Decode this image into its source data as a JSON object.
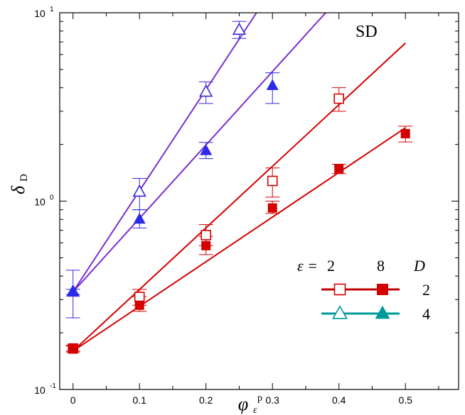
{
  "chart_data": {
    "type": "scatter",
    "title": "",
    "annotation": "SD",
    "xlabel": {
      "symbol": "φ",
      "subscript": "ε",
      "superscript": "p"
    },
    "ylabel": {
      "symbol": "δ",
      "subscript": "D"
    },
    "xlim": [
      -0.02,
      0.58
    ],
    "ylim": [
      0.1,
      10
    ],
    "yscale": "log",
    "grid": false,
    "x_ticks": [
      {
        "value": 0,
        "label": "0"
      },
      {
        "value": 0.1,
        "label": "0.1"
      },
      {
        "value": 0.2,
        "label": "0.2"
      },
      {
        "value": 0.3,
        "label": "0.3"
      },
      {
        "value": 0.4,
        "label": "0.4"
      },
      {
        "value": 0.5,
        "label": "0.5"
      }
    ],
    "y_ticks": [
      {
        "value": 0.1,
        "base": "10",
        "exp": "-1"
      },
      {
        "value": 1,
        "base": "10",
        "exp": "0"
      },
      {
        "value": 10,
        "base": "10",
        "exp": "1"
      }
    ],
    "legend": {
      "placement": "bottom-right",
      "epsilon_label": "ε =",
      "epsilon_values": [
        "2",
        "8"
      ],
      "d_label": "D",
      "rows": [
        {
          "d": "2",
          "line_color": "#c00000",
          "marker": "square"
        },
        {
          "d": "4",
          "line_color": "#009a9a",
          "marker": "triangle"
        }
      ]
    },
    "series": [
      {
        "key": "eps2-D2",
        "marker": "square",
        "filled": false,
        "color": "#d40000",
        "points": [
          {
            "x": 0,
            "y": 0.165,
            "lo": 0.158,
            "hi": 0.172
          },
          {
            "x": 0.1,
            "y": 0.31,
            "lo": 0.28,
            "hi": 0.34
          },
          {
            "x": 0.2,
            "y": 0.66,
            "lo": 0.58,
            "hi": 0.75
          },
          {
            "x": 0.3,
            "y": 1.28,
            "lo": 1.05,
            "hi": 1.5
          },
          {
            "x": 0.4,
            "y": 3.5,
            "lo": 3.0,
            "hi": 4.0
          }
        ],
        "fit": {
          "x": [
            0,
            0.5
          ],
          "y": [
            0.16,
            6.9
          ]
        }
      },
      {
        "key": "eps8-D2",
        "marker": "square",
        "filled": true,
        "color": "#d40000",
        "points": [
          {
            "x": 0,
            "y": 0.165,
            "lo": 0.16,
            "hi": 0.17
          },
          {
            "x": 0.1,
            "y": 0.28,
            "lo": 0.26,
            "hi": 0.31
          },
          {
            "x": 0.2,
            "y": 0.58,
            "lo": 0.52,
            "hi": 0.65
          },
          {
            "x": 0.3,
            "y": 0.92,
            "lo": 0.86,
            "hi": 1.0
          },
          {
            "x": 0.4,
            "y": 1.48,
            "lo": 1.4,
            "hi": 1.57
          },
          {
            "x": 0.5,
            "y": 2.28,
            "lo": 2.06,
            "hi": 2.5
          }
        ],
        "fit": {
          "x": [
            0,
            0.5
          ],
          "y": [
            0.16,
            2.45
          ]
        }
      },
      {
        "key": "eps2-D4",
        "marker": "triangle",
        "filled": false,
        "color": "#3b2bd8",
        "points": [
          {
            "x": 0,
            "y": 0.33,
            "lo": 0.24,
            "hi": 0.43
          },
          {
            "x": 0.1,
            "y": 1.12,
            "lo": 0.9,
            "hi": 1.32
          },
          {
            "x": 0.2,
            "y": 3.8,
            "lo": 3.3,
            "hi": 4.3
          },
          {
            "x": 0.25,
            "y": 8.1,
            "lo": 7.3,
            "hi": 9.0
          }
        ],
        "fit": {
          "x": [
            0,
            0.276
          ],
          "y": [
            0.33,
            10
          ]
        },
        "line_color": "#7a2fd0"
      },
      {
        "key": "eps8-D4",
        "marker": "triangle",
        "filled": true,
        "color": "#2a2ae8",
        "points": [
          {
            "x": 0,
            "y": 0.33,
            "lo": 0.32,
            "hi": 0.34
          },
          {
            "x": 0.1,
            "y": 0.8,
            "lo": 0.72,
            "hi": 0.9
          },
          {
            "x": 0.2,
            "y": 1.85,
            "lo": 1.68,
            "hi": 2.05
          },
          {
            "x": 0.3,
            "y": 4.1,
            "lo": 3.3,
            "hi": 4.8
          }
        ],
        "fit": {
          "x": [
            0,
            0.38
          ],
          "y": [
            0.33,
            10
          ]
        },
        "line_color": "#7a2fd0"
      }
    ]
  }
}
